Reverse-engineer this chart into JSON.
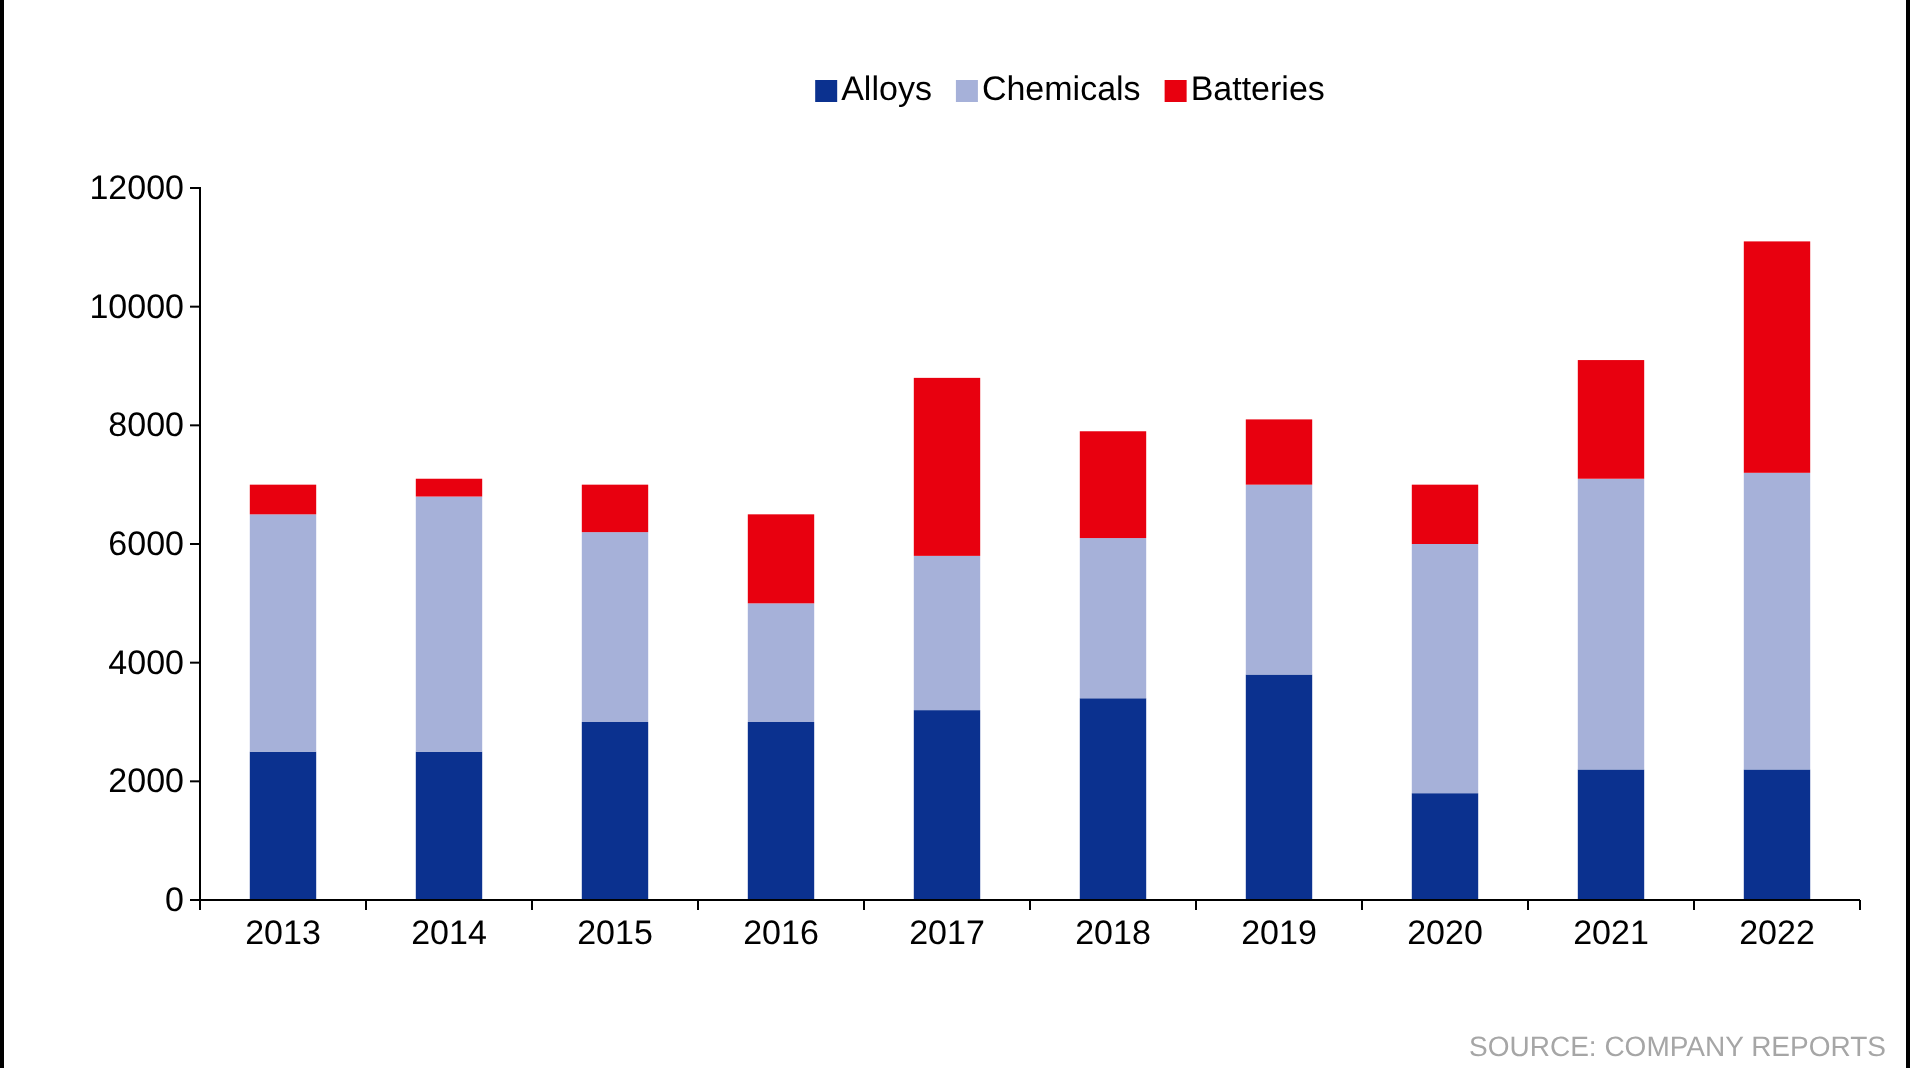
{
  "chart_data": {
    "type": "bar",
    "stacked": true,
    "categories": [
      "2013",
      "2014",
      "2015",
      "2016",
      "2017",
      "2018",
      "2019",
      "2020",
      "2021",
      "2022"
    ],
    "series": [
      {
        "name": "Alloys",
        "color": "#0b318f",
        "values": [
          2500,
          2500,
          3000,
          3000,
          3200,
          3400,
          3800,
          1800,
          2200,
          2200
        ]
      },
      {
        "name": "Chemicals",
        "color": "#a6b1d9",
        "values": [
          4000,
          4300,
          3200,
          2000,
          2600,
          2700,
          3200,
          4200,
          4900,
          5000
        ]
      },
      {
        "name": "Batteries",
        "color": "#e8000f",
        "values": [
          500,
          300,
          800,
          1500,
          3000,
          1800,
          1100,
          1000,
          2000,
          3900
        ]
      }
    ],
    "ylim": [
      0,
      12000
    ],
    "yticks": [
      0,
      2000,
      4000,
      6000,
      8000,
      10000,
      12000
    ],
    "grid": false,
    "legend": "top",
    "annotations": [
      "SOURCE: COMPANY REPORTS"
    ]
  }
}
